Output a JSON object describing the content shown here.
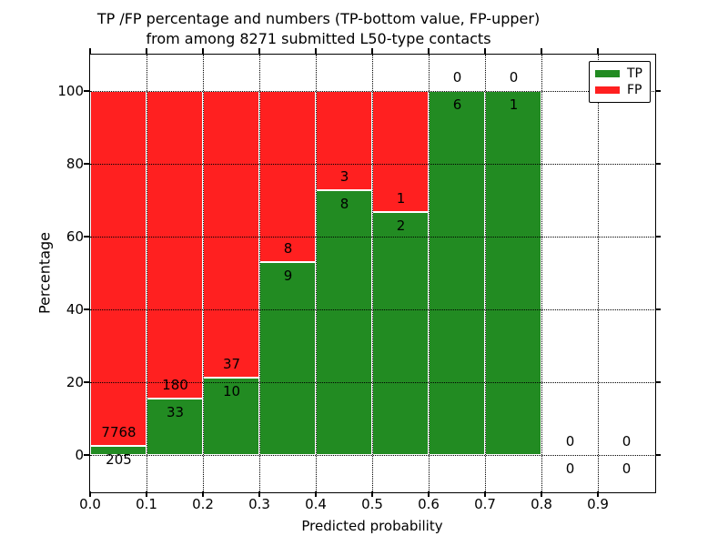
{
  "figure": {
    "title_line1": "TP /FP percentage and numbers (TP-bottom value, FP-upper)",
    "title_line2": "from among 8271 submitted L50-type contacts",
    "xlabel": "Predicted probability",
    "ylabel": "Percentage"
  },
  "axes": {
    "ytick_labels": [
      "0",
      "20",
      "40",
      "60",
      "80",
      "100"
    ],
    "ytick_values": [
      0,
      20,
      40,
      60,
      80,
      100
    ],
    "xtick_labels": [
      "0.0",
      "0.1",
      "0.2",
      "0.3",
      "0.4",
      "0.5",
      "0.6",
      "0.7",
      "0.8",
      "0.9"
    ],
    "xtick_values": [
      0,
      0.1,
      0.2,
      0.3,
      0.4,
      0.5,
      0.6,
      0.7,
      0.8,
      0.9
    ]
  },
  "legend": {
    "items": [
      {
        "label": "TP",
        "color": "#228b22"
      },
      {
        "label": "FP",
        "color": "#ff2020"
      }
    ]
  },
  "chart_data": {
    "type": "bar",
    "subtype": "stacked-percentage-histogram",
    "title": "TP /FP percentage and numbers (TP-bottom value, FP-upper) from among 8271 submitted L50-type contacts",
    "xlabel": "Predicted probability",
    "ylabel": "Percentage",
    "total_submitted": 8271,
    "categories": [
      "0.0-0.1",
      "0.1-0.2",
      "0.2-0.3",
      "0.3-0.4",
      "0.4-0.5",
      "0.5-0.6",
      "0.6-0.7",
      "0.7-0.8",
      "0.8-0.9",
      "0.9-1.0"
    ],
    "bin_start": [
      0.0,
      0.1,
      0.2,
      0.3,
      0.4,
      0.5,
      0.6,
      0.7,
      0.8,
      0.9
    ],
    "bin_width": 0.1,
    "series": [
      {
        "name": "TP",
        "color": "#228b22",
        "values": [
          205,
          33,
          10,
          9,
          8,
          2,
          6,
          1,
          0,
          0
        ]
      },
      {
        "name": "FP",
        "color": "#ff2020",
        "values": [
          7768,
          180,
          37,
          8,
          3,
          1,
          0,
          0,
          0,
          0
        ]
      }
    ],
    "tp_percent_per_bin": [
      2.57,
      15.49,
      21.28,
      52.94,
      72.73,
      66.67,
      100.0,
      100.0,
      null,
      null
    ],
    "ylim": [
      -10,
      110
    ],
    "xlim": [
      0,
      1.0
    ],
    "yticks": [
      0,
      20,
      40,
      60,
      80,
      100
    ],
    "grid": true,
    "grid_style": "dotted",
    "bar_edge_color": "#ffffff",
    "legend_position": "upper right"
  }
}
